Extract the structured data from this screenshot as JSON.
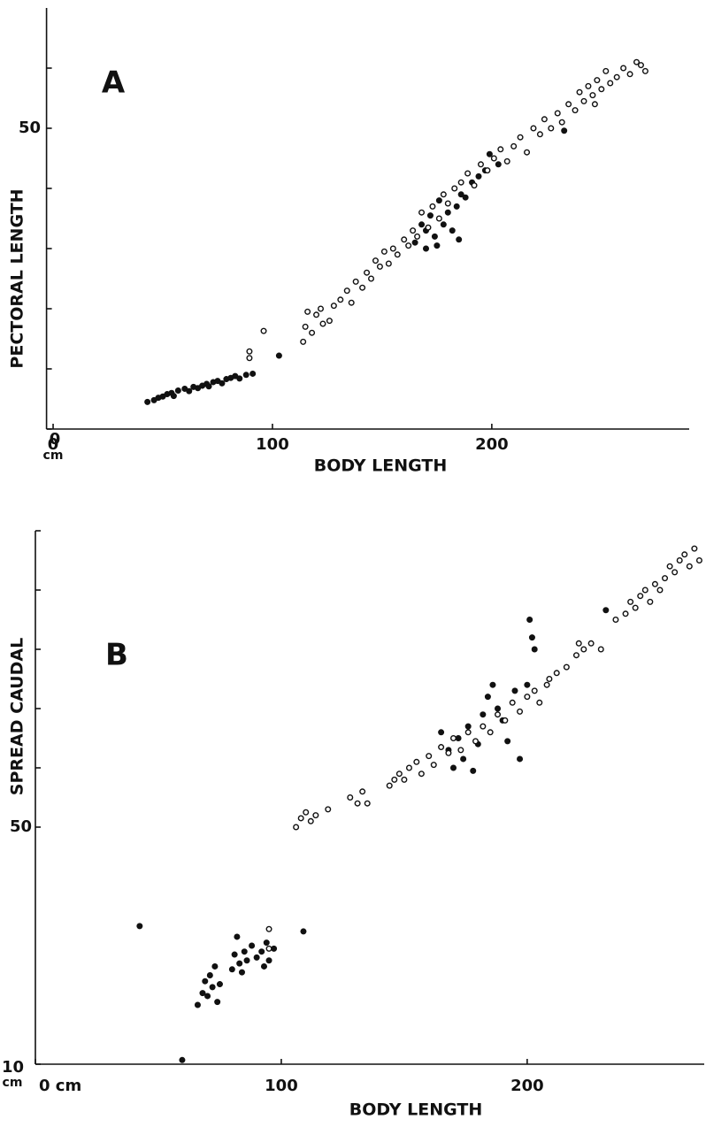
{
  "chart_data": [
    {
      "type": "scatter",
      "title": "A",
      "xlabel": "BODY LENGTH",
      "ylabel": "PECTORAL LENGTH",
      "x_unit": "cm",
      "xlim": [
        -3,
        290
      ],
      "xticks": [
        0,
        100,
        200
      ],
      "ylim": [
        0,
        70
      ],
      "yticks": [
        50
      ],
      "minor_yticks": [
        0,
        10,
        20,
        30,
        40,
        60
      ],
      "series": [
        {
          "color": "#111111",
          "marker": "filled",
          "x": [
            43,
            46,
            48,
            50,
            52,
            54,
            55,
            57,
            60,
            62,
            64,
            66,
            68,
            70,
            71,
            73,
            75,
            77,
            79,
            81,
            83,
            85,
            88,
            91,
            103,
            165,
            168,
            170,
            172,
            174,
            176,
            178,
            180,
            182,
            184,
            186,
            188,
            191,
            194,
            197,
            199,
            203,
            233,
            170,
            175,
            185
          ],
          "values": [
            4.5,
            4.8,
            5.2,
            5.4,
            5.8,
            6,
            5.5,
            6.4,
            6.7,
            6.3,
            7,
            6.8,
            7.2,
            7.5,
            7.1,
            7.8,
            8,
            7.6,
            8.3,
            8.5,
            8.8,
            8.4,
            9,
            9.2,
            12.2,
            31,
            34,
            30,
            35.5,
            32,
            38,
            34,
            36,
            33,
            37,
            39,
            38.5,
            41,
            42,
            43,
            45.7,
            44,
            49.6,
            33,
            30.5,
            31.5
          ]
        },
        {
          "color": "#111111",
          "marker": "open",
          "x": [
            89.5,
            89.5,
            96,
            114,
            115,
            116,
            118,
            120,
            122,
            123,
            126,
            128,
            131,
            134,
            136,
            138,
            141,
            143,
            145,
            147,
            149,
            151,
            153,
            155,
            157,
            160,
            162,
            164,
            166,
            168,
            171,
            173,
            176,
            178,
            180,
            183,
            186,
            189,
            192,
            195,
            198,
            201,
            204,
            207,
            210,
            213,
            216,
            219,
            222,
            224,
            227,
            230,
            232,
            235,
            238,
            240,
            242,
            244,
            246,
            248,
            250,
            252,
            254,
            257,
            260,
            263,
            266,
            268,
            270,
            247
          ],
          "values": [
            12.9,
            11.8,
            16.3,
            14.5,
            17,
            19.5,
            16,
            19,
            20,
            17.5,
            18,
            20.5,
            21.5,
            23,
            21,
            24.5,
            23.5,
            26,
            25,
            28,
            27,
            29.5,
            27.5,
            30,
            29,
            31.5,
            30.5,
            33,
            32,
            36,
            33.5,
            37,
            35,
            39,
            37.5,
            40,
            41,
            42.5,
            40.5,
            44,
            43,
            45,
            46.5,
            44.5,
            47,
            48.5,
            46,
            50,
            49,
            51.5,
            50,
            52.5,
            51,
            54,
            53,
            56,
            54.5,
            57,
            55.5,
            58,
            56.5,
            59.5,
            57.5,
            58.5,
            60,
            59,
            61,
            60.5,
            59.5,
            54
          ]
        }
      ]
    },
    {
      "type": "scatter",
      "title": "B",
      "xlabel": "BODY LENGTH",
      "ylabel": "SPREAD CAUDAL",
      "y_unit": "cm",
      "xlim": [
        0,
        272
      ],
      "xticks": [
        {
          "value": 0,
          "label": "0 cm"
        },
        100,
        200
      ],
      "ylim": [
        10,
        100
      ],
      "yticks": [
        10,
        50
      ],
      "minor_yticks": [
        60,
        70,
        80,
        90,
        100
      ],
      "series": [
        {
          "color": "#111111",
          "marker": "filled",
          "x": [
            42.4,
            59.7,
            66,
            68,
            69,
            70,
            71,
            72,
            73,
            74,
            75,
            80,
            81,
            82,
            83,
            84,
            85,
            86,
            88,
            90,
            92,
            93,
            94,
            95,
            97,
            109,
            165,
            168,
            170,
            172,
            174,
            176,
            178,
            180,
            182,
            184,
            186,
            188,
            190,
            192,
            195,
            197,
            200,
            201,
            202,
            203,
            232
          ],
          "values": [
            33.3,
            10.7,
            20,
            22,
            24,
            21.5,
            25,
            23,
            26.5,
            20.5,
            23.5,
            26,
            28.5,
            31.5,
            27,
            25.5,
            29,
            27.5,
            30,
            28,
            29,
            26.5,
            30.5,
            27.5,
            29.5,
            32.4,
            66,
            63,
            60,
            65,
            61.5,
            67,
            59.5,
            64,
            69,
            72,
            74,
            70,
            68,
            64.5,
            73,
            61.5,
            74,
            85,
            82,
            80,
            86.6
          ]
        },
        {
          "color": "#111111",
          "marker": "open",
          "x": [
            95,
            95,
            106,
            108,
            110,
            112,
            114,
            119,
            128,
            131,
            133,
            135,
            144,
            146,
            148,
            150,
            152,
            155,
            157,
            160,
            162,
            165,
            168,
            170,
            173,
            176,
            179,
            182,
            185,
            188,
            191,
            194,
            197,
            200,
            203,
            205,
            208,
            212,
            216,
            220,
            223,
            226,
            230,
            236,
            240,
            242,
            244,
            246,
            248,
            250,
            252,
            254,
            256,
            258,
            260,
            262,
            264,
            266,
            268,
            270,
            221,
            209
          ],
          "values": [
            32.8,
            29.5,
            50,
            51.5,
            52.5,
            51,
            52,
            53,
            55,
            54,
            56,
            54,
            57,
            58,
            59,
            58,
            60,
            61,
            59,
            62,
            60.5,
            63.5,
            62.5,
            65,
            63,
            66,
            64.5,
            67,
            66,
            69,
            68,
            71,
            69.5,
            72,
            73,
            71,
            74,
            76,
            77,
            79,
            80,
            81,
            80,
            85,
            86,
            88,
            87,
            89,
            90,
            88,
            91,
            90,
            92,
            94,
            93,
            95,
            96,
            94,
            97,
            95,
            81,
            75
          ]
        }
      ]
    }
  ]
}
